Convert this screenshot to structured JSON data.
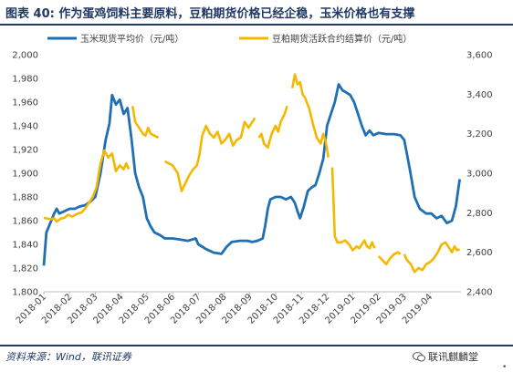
{
  "header": {
    "figure_label": "图表 40:",
    "title_text": "作为蛋鸡饲料主要原料，豆粕期货价格已经企稳，玉米价格也有支撑"
  },
  "footer": {
    "source": "资料来源：Wind，联讯证券",
    "brand": "联讯麒麟堂",
    "brand_icon": "wechat-icon",
    "corner_mark": "•"
  },
  "colors": {
    "title": "#1f3864",
    "series_corn": "#1f6fb4",
    "series_soy": "#f5b800"
  },
  "chart_data": {
    "type": "line",
    "title": "",
    "legend_position": "top",
    "grid": false,
    "x_ticks": [
      "2018-01",
      "2018-02",
      "2018-03",
      "2018-04",
      "2018-05",
      "2018-06",
      "2018-07",
      "2018-08",
      "2018-09",
      "2018-10",
      "2018-11",
      "2018-12",
      "2019-01",
      "2019-02",
      "2019-03",
      "2019-04"
    ],
    "x_range": [
      0,
      16.2
    ],
    "y_left": {
      "ticks": [
        "1,800",
        "1,820",
        "1,840",
        "1,860",
        "1,880",
        "1,900",
        "1,920",
        "1,940",
        "1,960",
        "1,980",
        "2,000"
      ],
      "range": [
        1800,
        2000
      ]
    },
    "y_right": {
      "ticks": [
        "2,400",
        "2,600",
        "2,800",
        "3,000",
        "3,200",
        "3,400",
        "3,600"
      ],
      "range": [
        2400,
        3600
      ]
    },
    "series": [
      {
        "name": "玉米现货平均价（元/吨）",
        "axis": "left",
        "points": [
          [
            0.0,
            1822
          ],
          [
            0.1,
            1850
          ],
          [
            0.25,
            1858
          ],
          [
            0.4,
            1866
          ],
          [
            0.5,
            1870
          ],
          [
            0.6,
            1866
          ],
          [
            0.8,
            1868
          ],
          [
            1.0,
            1870
          ],
          [
            1.2,
            1870
          ],
          [
            1.4,
            1872
          ],
          [
            1.6,
            1873
          ],
          [
            1.8,
            1876
          ],
          [
            2.0,
            1880
          ],
          [
            2.2,
            1900
          ],
          [
            2.4,
            1928
          ],
          [
            2.55,
            1942
          ],
          [
            2.65,
            1966
          ],
          [
            2.8,
            1958
          ],
          [
            2.95,
            1962
          ],
          [
            3.1,
            1950
          ],
          [
            3.25,
            1955
          ],
          [
            3.4,
            1930
          ],
          [
            3.55,
            1900
          ],
          [
            3.7,
            1888
          ],
          [
            3.85,
            1880
          ],
          [
            4.0,
            1862
          ],
          [
            4.15,
            1855
          ],
          [
            4.3,
            1850
          ],
          [
            4.5,
            1848
          ],
          [
            4.7,
            1845
          ],
          [
            5.0,
            1845
          ],
          [
            5.3,
            1844
          ],
          [
            5.6,
            1843
          ],
          [
            5.9,
            1845
          ],
          [
            6.0,
            1840
          ],
          [
            6.3,
            1836
          ],
          [
            6.6,
            1833
          ],
          [
            6.9,
            1832
          ],
          [
            7.1,
            1838
          ],
          [
            7.3,
            1842
          ],
          [
            7.6,
            1843
          ],
          [
            7.9,
            1843
          ],
          [
            8.1,
            1842
          ],
          [
            8.3,
            1843
          ],
          [
            8.5,
            1845
          ],
          [
            8.6,
            1856
          ],
          [
            8.7,
            1870
          ],
          [
            8.8,
            1878
          ],
          [
            9.0,
            1880
          ],
          [
            9.2,
            1880
          ],
          [
            9.4,
            1878
          ],
          [
            9.6,
            1880
          ],
          [
            9.75,
            1875
          ],
          [
            9.85,
            1868
          ],
          [
            9.95,
            1862
          ],
          [
            10.1,
            1872
          ],
          [
            10.25,
            1885
          ],
          [
            10.4,
            1888
          ],
          [
            10.55,
            1890
          ],
          [
            10.7,
            1900
          ],
          [
            10.85,
            1912
          ],
          [
            11.0,
            1940
          ],
          [
            11.15,
            1950
          ],
          [
            11.3,
            1960
          ],
          [
            11.45,
            1975
          ],
          [
            11.6,
            1970
          ],
          [
            11.75,
            1968
          ],
          [
            11.9,
            1966
          ],
          [
            12.05,
            1960
          ],
          [
            12.2,
            1950
          ],
          [
            12.35,
            1940
          ],
          [
            12.5,
            1932
          ],
          [
            12.65,
            1936
          ],
          [
            12.8,
            1932
          ],
          [
            13.0,
            1934
          ],
          [
            13.3,
            1933
          ],
          [
            13.6,
            1933
          ],
          [
            13.85,
            1932
          ],
          [
            14.0,
            1928
          ],
          [
            14.2,
            1905
          ],
          [
            14.4,
            1880
          ],
          [
            14.6,
            1870
          ],
          [
            14.85,
            1866
          ],
          [
            15.05,
            1866
          ],
          [
            15.25,
            1862
          ],
          [
            15.45,
            1864
          ],
          [
            15.65,
            1858
          ],
          [
            15.85,
            1860
          ],
          [
            16.0,
            1872
          ],
          [
            16.15,
            1895
          ]
        ]
      },
      {
        "name": "豆粕期货活跃合约结算价（元/吨）",
        "axis": "right",
        "segments": [
          [
            [
              0.0,
              2775
            ],
            [
              0.15,
              2770
            ],
            [
              0.3,
              2768
            ],
            [
              0.4,
              2772
            ],
            [
              0.5,
              2755
            ],
            [
              0.65,
              2770
            ],
            [
              0.8,
              2775
            ],
            [
              0.95,
              2790
            ],
            [
              1.1,
              2780
            ],
            [
              1.3,
              2795
            ],
            [
              1.45,
              2800
            ],
            [
              1.6,
              2820
            ],
            [
              1.75,
              2850
            ],
            [
              1.9,
              2880
            ],
            [
              2.05,
              2930
            ],
            [
              2.2,
              3050
            ],
            [
              2.35,
              3115
            ],
            [
              2.5,
              3080
            ],
            [
              2.65,
              3100
            ],
            [
              2.8,
              3010
            ],
            [
              2.95,
              3040
            ],
            [
              3.1,
              3020
            ],
            [
              3.2,
              3050
            ],
            [
              3.3,
              3020
            ]
          ],
          [
            [
              3.45,
              3340
            ],
            [
              3.55,
              3260
            ],
            [
              3.7,
              3230
            ],
            [
              3.85,
              3200
            ],
            [
              3.95,
              3190
            ],
            [
              4.05,
              3230
            ],
            [
              4.15,
              3200
            ],
            [
              4.3,
              3190
            ],
            [
              4.45,
              3180
            ]
          ],
          [
            [
              4.7,
              3060
            ],
            [
              4.85,
              3050
            ],
            [
              5.0,
              3040
            ],
            [
              5.2,
              3000
            ],
            [
              5.35,
              2910
            ],
            [
              5.5,
              2950
            ],
            [
              5.65,
              2990
            ],
            [
              5.8,
              3020
            ],
            [
              5.95,
              3040
            ],
            [
              6.05,
              3100
            ],
            [
              6.15,
              3190
            ],
            [
              6.3,
              3240
            ],
            [
              6.45,
              3200
            ],
            [
              6.6,
              3180
            ],
            [
              6.75,
              3210
            ],
            [
              6.9,
              3150
            ],
            [
              7.05,
              3170
            ],
            [
              7.2,
              3200
            ],
            [
              7.35,
              3140
            ],
            [
              7.5,
              3170
            ],
            [
              7.65,
              3180
            ],
            [
              7.8,
              3260
            ],
            [
              7.95,
              3230
            ],
            [
              8.1,
              3260
            ],
            [
              8.2,
              3280
            ]
          ],
          [
            [
              8.35,
              3180
            ],
            [
              8.45,
              3200
            ],
            [
              8.55,
              3150
            ],
            [
              8.7,
              3130
            ],
            [
              8.85,
              3200
            ],
            [
              9.0,
              3240
            ],
            [
              9.1,
              3210
            ],
            [
              9.2,
              3260
            ],
            [
              9.35,
              3300
            ],
            [
              9.45,
              3340
            ]
          ],
          [
            [
              9.65,
              3430
            ],
            [
              9.75,
              3500
            ],
            [
              9.85,
              3450
            ],
            [
              9.95,
              3460
            ],
            [
              10.05,
              3400
            ],
            [
              10.15,
              3380
            ],
            [
              10.3,
              3330
            ],
            [
              10.45,
              3250
            ],
            [
              10.6,
              3180
            ],
            [
              10.75,
              3150
            ],
            [
              10.85,
              3200
            ],
            [
              10.95,
              3160
            ],
            [
              11.05,
              3080
            ]
          ],
          [
            [
              11.2,
              3030
            ],
            [
              11.3,
              2680
            ],
            [
              11.4,
              2650
            ],
            [
              11.55,
              2650
            ],
            [
              11.7,
              2660
            ],
            [
              11.85,
              2640
            ],
            [
              12.0,
              2610
            ],
            [
              12.15,
              2630
            ],
            [
              12.25,
              2620
            ],
            [
              12.35,
              2640
            ],
            [
              12.45,
              2660
            ],
            [
              12.55,
              2630
            ],
            [
              12.65,
              2620
            ],
            [
              12.75,
              2650
            ],
            [
              12.85,
              2620
            ]
          ],
          [
            [
              13.0,
              2580
            ],
            [
              13.15,
              2560
            ],
            [
              13.3,
              2540
            ],
            [
              13.45,
              2570
            ],
            [
              13.6,
              2590
            ],
            [
              13.75,
              2600
            ],
            [
              13.85,
              2590
            ]
          ],
          [
            [
              14.0,
              2590
            ],
            [
              14.1,
              2560
            ],
            [
              14.25,
              2540
            ],
            [
              14.4,
              2500
            ],
            [
              14.55,
              2520
            ],
            [
              14.7,
              2510
            ],
            [
              14.85,
              2540
            ],
            [
              15.0,
              2550
            ],
            [
              15.15,
              2570
            ],
            [
              15.3,
              2600
            ],
            [
              15.45,
              2640
            ],
            [
              15.6,
              2650
            ],
            [
              15.75,
              2620
            ],
            [
              15.85,
              2600
            ],
            [
              15.95,
              2630
            ],
            [
              16.05,
              2610
            ],
            [
              16.15,
              2615
            ]
          ]
        ]
      }
    ]
  }
}
